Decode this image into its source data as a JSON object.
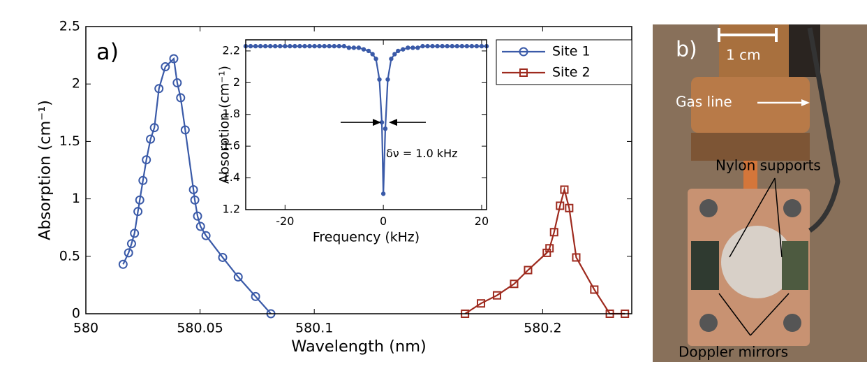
{
  "chart_data": [
    {
      "type": "line",
      "panel_label": "a)",
      "x_label": "Wavelength (nm)",
      "y_label": "Absorption (cm⁻¹)",
      "xlim": [
        580,
        580.239
      ],
      "ylim": [
        0,
        2.5
      ],
      "xticks": [
        580,
        580.05,
        580.1,
        580.2
      ],
      "yticks": [
        0,
        0.5,
        1,
        1.5,
        2,
        2.5
      ],
      "legend": "top-right",
      "series": [
        {
          "name": "Site 1",
          "color": "#3a5aa8",
          "marker": "circle",
          "x": [
            580.0163,
            580.0187,
            580.02,
            580.0213,
            580.0228,
            580.0236,
            580.025,
            580.0265,
            580.0283,
            580.03,
            580.032,
            580.0348,
            580.0385,
            580.04,
            580.0415,
            580.0435,
            580.0471,
            580.0477,
            580.0489,
            580.0502,
            580.0526,
            580.0599,
            580.0667,
            580.0743,
            580.081
          ],
          "values": [
            0.43,
            0.53,
            0.61,
            0.7,
            0.89,
            0.99,
            1.16,
            1.34,
            1.52,
            1.62,
            1.96,
            2.15,
            2.22,
            2.01,
            1.88,
            1.6,
            1.08,
            0.99,
            0.85,
            0.76,
            0.68,
            0.49,
            0.32,
            0.15,
            0
          ]
        },
        {
          "name": "Site 2",
          "color": "#9e2a1e",
          "marker": "square",
          "x": [
            580.166,
            580.173,
            580.18,
            580.1875,
            580.1936,
            580.2018,
            580.203,
            580.205,
            580.2076,
            580.2095,
            580.2116,
            580.2147,
            580.2226,
            580.2294,
            580.236
          ],
          "values": [
            0,
            0.09,
            0.16,
            0.26,
            0.38,
            0.53,
            0.57,
            0.71,
            0.94,
            1.08,
            0.92,
            0.49,
            0.21,
            0,
            0
          ]
        }
      ]
    },
    {
      "type": "line",
      "x_label": "Frequency (kHz)",
      "y_label": "Absorption (cm⁻¹)",
      "annotation": "δν = 1.0 kHz",
      "xlim": [
        -28,
        21
      ],
      "ylim": [
        1.2,
        2.27
      ],
      "xticks": [
        -20,
        0,
        20
      ],
      "yticks": [
        1.2,
        1.4,
        1.6,
        1.8,
        2,
        2.2
      ],
      "series": [
        {
          "color": "#3a5aa8",
          "marker": "dot",
          "x": [
            -28,
            -27,
            -26,
            -25,
            -24,
            -23,
            -22,
            -21,
            -20,
            -19,
            -18,
            -17,
            -16,
            -15,
            -14,
            -13,
            -12,
            -11,
            -10,
            -9,
            -8,
            -7,
            -6,
            -5,
            -4,
            -3,
            -2.2,
            -1.5,
            -0.8,
            -0.3,
            0,
            0.4,
            0.9,
            1.6,
            2.3,
            3,
            4,
            5,
            6,
            7,
            8,
            9,
            10,
            11,
            12,
            13,
            14,
            15,
            16,
            17,
            18,
            19,
            20,
            21
          ],
          "values": [
            2.23,
            2.23,
            2.23,
            2.23,
            2.23,
            2.23,
            2.23,
            2.23,
            2.23,
            2.23,
            2.23,
            2.23,
            2.23,
            2.23,
            2.23,
            2.23,
            2.23,
            2.23,
            2.23,
            2.23,
            2.23,
            2.22,
            2.22,
            2.22,
            2.21,
            2.2,
            2.18,
            2.15,
            2.02,
            1.75,
            1.3,
            1.71,
            2.02,
            2.15,
            2.18,
            2.2,
            2.21,
            2.22,
            2.22,
            2.22,
            2.23,
            2.23,
            2.23,
            2.23,
            2.23,
            2.23,
            2.23,
            2.23,
            2.23,
            2.23,
            2.23,
            2.23,
            2.23,
            2.23
          ]
        }
      ]
    }
  ],
  "photo": {
    "panel_label": "b)",
    "scale": "1 cm",
    "labels": [
      "Gas line",
      "Nylon supports",
      "Doppler mirrors"
    ]
  }
}
